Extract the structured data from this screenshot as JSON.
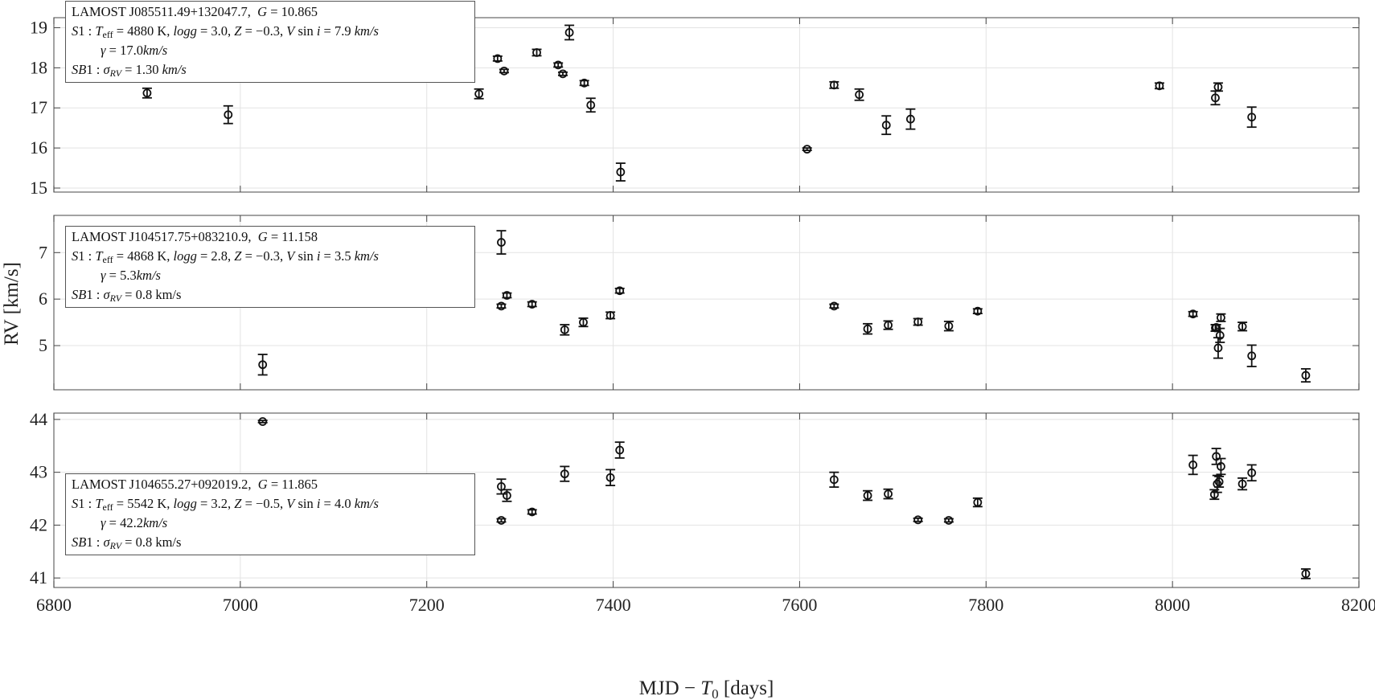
{
  "figure": {
    "xlabel_main": "MJD − ",
    "xlabel_T": "T",
    "xlabel_sub": "0",
    "xlabel_unit": " [days]",
    "ylabel": "RV [km/s]"
  },
  "legend_common": {
    "teff_label": "T",
    "teff_sub": "eff",
    "logg": "logg",
    "Z": "Z",
    "V": "V",
    "sin": " sin ",
    "i": "i",
    "kms_it": "km/s",
    "gamma": "γ",
    "sigma": "σ",
    "sigma_sub": "RV"
  },
  "chart_data": [
    {
      "type": "scatter",
      "title": "",
      "star": "LAMOST J085511.49+132047.7",
      "G": "10.865",
      "S1": {
        "teff": "4880",
        "logg": "3.0",
        "Z": "−0.3",
        "vsini": "7.9"
      },
      "gamma": "17.0",
      "sigma_rv": "1.30",
      "sigma_unit_italic": true,
      "xlim": [
        6800,
        8200
      ],
      "ylim": [
        14.9,
        19.25
      ],
      "yticks": [
        15,
        16,
        17,
        18,
        19
      ],
      "series": [
        {
          "x": [
            6900,
            6987,
            7256,
            7276,
            7283,
            7318,
            7341,
            7346,
            7353,
            7369,
            7376,
            7408,
            7608,
            7637,
            7664,
            7693,
            7719,
            7986,
            8046,
            8049,
            8085
          ],
          "y": [
            17.37,
            16.83,
            17.35,
            18.23,
            17.92,
            18.38,
            18.07,
            17.85,
            18.88,
            17.62,
            17.07,
            15.4,
            15.97,
            17.57,
            17.33,
            16.57,
            16.72,
            17.55,
            17.25,
            17.52,
            16.77
          ],
          "err": [
            0.12,
            0.22,
            0.12,
            0.06,
            0.04,
            0.08,
            0.05,
            0.04,
            0.18,
            0.06,
            0.17,
            0.22,
            0.03,
            0.08,
            0.14,
            0.23,
            0.25,
            0.07,
            0.17,
            0.1,
            0.25
          ]
        }
      ]
    },
    {
      "type": "scatter",
      "title": "",
      "star": "LAMOST J104517.75+083210.9",
      "G": "11.158",
      "S1": {
        "teff": "4868",
        "logg": "2.8",
        "Z": "−0.3",
        "vsini": "3.5"
      },
      "gamma": "5.3",
      "sigma_rv": "0.8",
      "sigma_unit_italic": false,
      "xlim": [
        6800,
        8200
      ],
      "ylim": [
        4.05,
        7.8
      ],
      "yticks": [
        5,
        6,
        7
      ],
      "series": [
        {
          "x": [
            7024,
            7280,
            7280,
            7286,
            7313,
            7348,
            7368,
            7397,
            7407,
            7637,
            7673,
            7695,
            7727,
            7760,
            7791,
            8022,
            8046,
            8047,
            8049,
            8051,
            8052,
            8075,
            8085,
            8143
          ],
          "y": [
            4.59,
            7.22,
            5.85,
            6.08,
            5.89,
            5.34,
            5.5,
            5.65,
            6.18,
            5.85,
            5.36,
            5.44,
            5.51,
            5.42,
            5.74,
            5.68,
            5.38,
            5.39,
            4.95,
            5.22,
            5.6,
            5.41,
            4.78,
            4.36
          ],
          "err": [
            0.22,
            0.25,
            0.04,
            0.05,
            0.05,
            0.11,
            0.09,
            0.07,
            0.05,
            0.04,
            0.11,
            0.09,
            0.07,
            0.1,
            0.05,
            0.05,
            0.07,
            0.06,
            0.22,
            0.15,
            0.08,
            0.09,
            0.23,
            0.14
          ]
        }
      ]
    },
    {
      "type": "scatter",
      "title": "",
      "star": "LAMOST J104655.27+092019.2",
      "G": "11.865",
      "S1": {
        "teff": "5542",
        "logg": "3.2",
        "Z": "−0.5",
        "vsini": "4.0"
      },
      "gamma": "42.2",
      "sigma_rv": "0.8",
      "sigma_unit_italic": false,
      "xlim": [
        6800,
        8200
      ],
      "ylim": [
        40.82,
        44.12
      ],
      "yticks": [
        41,
        42,
        43,
        44
      ],
      "series": [
        {
          "x": [
            7024,
            7280,
            7280,
            7286,
            7313,
            7348,
            7397,
            7407,
            7637,
            7673,
            7695,
            7727,
            7760,
            7791,
            8022,
            8045,
            8047,
            8048,
            8050,
            8052,
            8075,
            8085,
            8143
          ],
          "y": [
            43.96,
            42.73,
            42.09,
            42.56,
            42.25,
            42.97,
            42.9,
            43.42,
            42.86,
            42.56,
            42.59,
            42.1,
            42.09,
            42.43,
            43.14,
            42.58,
            43.3,
            42.78,
            42.82,
            43.11,
            42.78,
            42.99,
            41.08
          ],
          "err": [
            0.02,
            0.14,
            0.03,
            0.11,
            0.04,
            0.14,
            0.15,
            0.15,
            0.14,
            0.09,
            0.09,
            0.03,
            0.03,
            0.08,
            0.18,
            0.09,
            0.15,
            0.16,
            0.1,
            0.15,
            0.11,
            0.15,
            0.09
          ]
        }
      ]
    }
  ]
}
